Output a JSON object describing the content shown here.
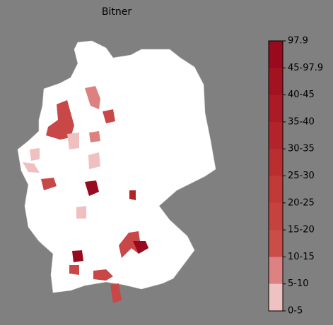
{
  "title": "Bitner",
  "colorbar": {
    "labels": [
      "97.9",
      "45-97.9",
      "40-45",
      "35-40",
      "30-35",
      "25-30",
      "20-25",
      "15-20",
      "10-15",
      "5-10",
      "0-5"
    ],
    "colors": [
      "#990a1e",
      "#a3121f",
      "#ab1a25",
      "#b3242a",
      "#bb2e30",
      "#c13a38",
      "#c6423f",
      "#ca4d48",
      "#dc8282",
      "#efc2c2",
      "#ffffff"
    ]
  }
}
